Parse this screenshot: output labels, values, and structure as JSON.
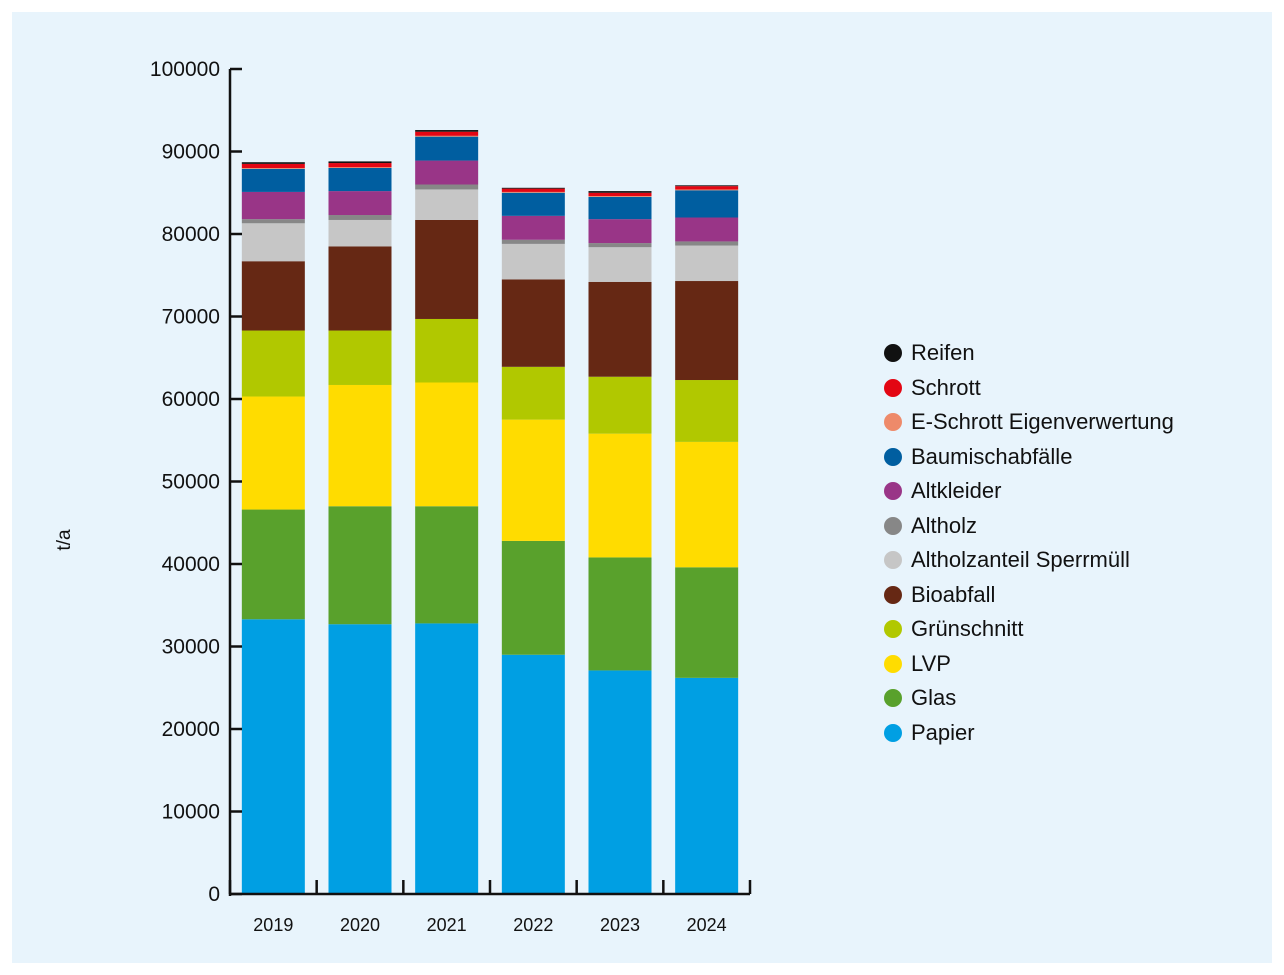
{
  "chart_data": {
    "type": "bar",
    "stacked": true,
    "title": "",
    "xlabel": "",
    "ylabel": "t/a",
    "ylim": [
      0,
      100000
    ],
    "yticks": [
      0,
      10000,
      20000,
      30000,
      40000,
      50000,
      60000,
      70000,
      80000,
      90000,
      100000
    ],
    "grid": false,
    "legend_position": "right",
    "categories": [
      "2019",
      "2020",
      "2021",
      "2022",
      "2023",
      "2024"
    ],
    "series": [
      {
        "name": "Papier",
        "color": "#009fe3",
        "values": [
          33300,
          32700,
          32800,
          29000,
          27100,
          26200
        ]
      },
      {
        "name": "Glas",
        "color": "#59a12c",
        "values": [
          13300,
          14300,
          14200,
          13800,
          13700,
          13400
        ]
      },
      {
        "name": "LVP",
        "color": "#ffdc00",
        "values": [
          13700,
          14700,
          15000,
          14700,
          15000,
          15200
        ]
      },
      {
        "name": "Grünschnitt",
        "color": "#b1c800",
        "values": [
          8000,
          6600,
          7700,
          6400,
          6900,
          7500
        ]
      },
      {
        "name": "Bioabfall",
        "color": "#662814",
        "values": [
          8400,
          10200,
          12000,
          10600,
          11500,
          12000
        ]
      },
      {
        "name": "Altholzanteil Sperrmüll",
        "color": "#c6c6c6",
        "values": [
          4600,
          3200,
          3700,
          4300,
          4200,
          4300
        ]
      },
      {
        "name": "Altholz",
        "color": "#878787",
        "values": [
          500,
          600,
          600,
          500,
          500,
          500
        ]
      },
      {
        "name": "Altkleider",
        "color": "#993587",
        "values": [
          3300,
          2900,
          2900,
          2900,
          2900,
          2900
        ]
      },
      {
        "name": "Baumischabfälle",
        "color": "#005ea0",
        "values": [
          2800,
          2800,
          2900,
          2800,
          2700,
          3300
        ]
      },
      {
        "name": "E-Schrott Eigenverwertung",
        "color": "#ee8a6a",
        "values": [
          100,
          100,
          100,
          100,
          100,
          100
        ]
      },
      {
        "name": "Schrott",
        "color": "#e30613",
        "values": [
          500,
          500,
          500,
          400,
          400,
          400
        ]
      },
      {
        "name": "Reifen",
        "color": "#111111",
        "values": [
          200,
          200,
          200,
          100,
          200,
          100
        ]
      }
    ],
    "legend_order": [
      "Reifen",
      "Schrott",
      "E-Schrott Eigenverwertung",
      "Baumischabfälle",
      "Altkleider",
      "Altholz",
      "Altholzanteil Sperrmüll",
      "Bioabfall",
      "Grünschnitt",
      "LVP",
      "Glas",
      "Papier"
    ]
  }
}
